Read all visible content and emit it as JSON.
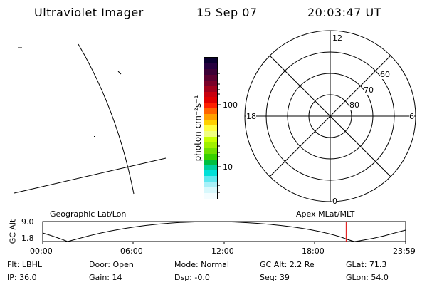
{
  "header": {
    "instrument": "Ultraviolet Imager",
    "date": "15 Sep 07",
    "time": "20:03:47 UT"
  },
  "colorbar": {
    "label": "photon cm⁻²s⁻¹",
    "ticks": [
      {
        "label": "100",
        "value": 100
      },
      {
        "label": "10",
        "value": 10
      }
    ],
    "colors": [
      "#0a0030",
      "#26003f",
      "#3c0036",
      "#5a0030",
      "#7a0028",
      "#a0001c",
      "#c8000e",
      "#e00000",
      "#ff2000",
      "#ff6400",
      "#ffa000",
      "#ffd000",
      "#ffff40",
      "#f0ff80",
      "#c8ff00",
      "#a0f000",
      "#70e000",
      "#38d000",
      "#00c040",
      "#00d0a0",
      "#00e0d8",
      "#60e8f0",
      "#a8f0f8",
      "#d8f8fc",
      "#f4fdff"
    ]
  },
  "polar_plot": {
    "mlt_labels": {
      "top": "12",
      "left": "18",
      "right": "6",
      "bottom": "0"
    },
    "lat_labels": [
      "60",
      "70",
      "80"
    ]
  },
  "timeline": {
    "left_label": "Geographic Lat/Lon",
    "right_label": "Apex MLat/MLT",
    "axis_title": "GC Alt",
    "y_ticks": [
      "9.0",
      "1.8"
    ],
    "x_ticks": [
      "00:00",
      "06:00",
      "12:00",
      "18:00",
      "23:59"
    ],
    "current_time_fraction": 0.836,
    "marker_color": "#e00000"
  },
  "info": {
    "flt": "Flt: LBHL",
    "door": "Door: Open",
    "mode": "Mode: Normal",
    "gc_alt": "GC Alt: 2.2 Re",
    "glat": "GLat:  71.3",
    "ip": "IP: 36.0",
    "gain": "Gain: 14",
    "dsp": "Dsp:   -0.0",
    "seq": "Seq: 39",
    "glon": "GLon:  54.0"
  }
}
